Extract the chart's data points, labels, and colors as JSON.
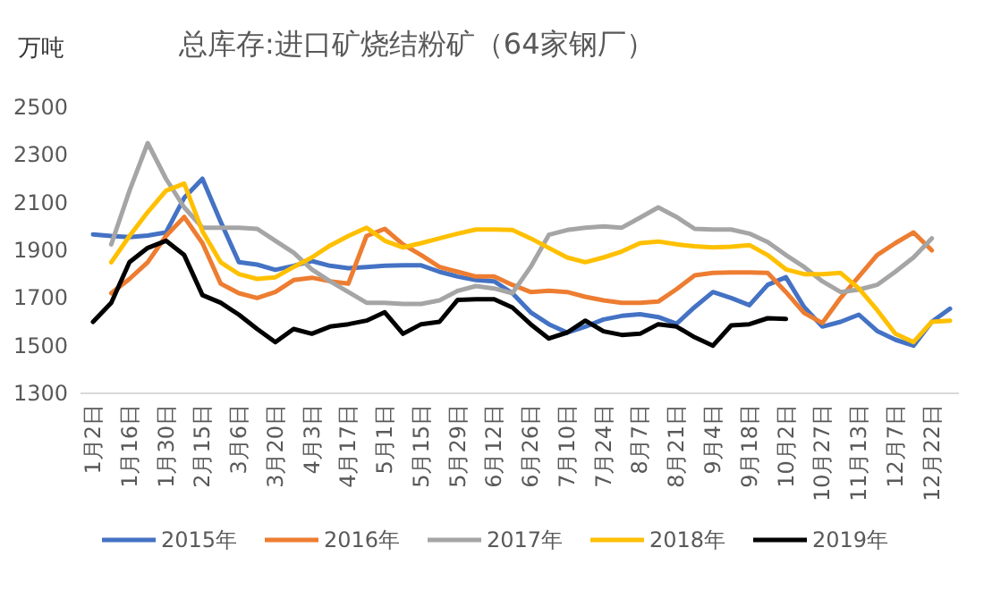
{
  "chart_data": {
    "type": "line",
    "title": "总库存:进口矿烧结粉矿（64家钢厂）",
    "ylabel": "万吨",
    "categories": [
      "1月2日",
      null,
      "1月16日",
      null,
      "1月30日",
      null,
      "2月15日",
      null,
      "3月6日",
      null,
      "3月20日",
      null,
      "4月3日",
      null,
      "4月17日",
      null,
      "5月1日",
      null,
      "5月15日",
      null,
      "5月29日",
      null,
      "6月12日",
      null,
      "6月26日",
      null,
      "7月10日",
      null,
      "7月24日",
      null,
      "8月7日",
      null,
      "8月21日",
      null,
      "9月4日",
      null,
      "9月18日",
      null,
      "10月2日",
      null,
      "10月27日",
      null,
      "11月13日",
      null,
      "12月7日",
      null,
      "12月22日",
      null
    ],
    "ylim": [
      1300,
      2500
    ],
    "yticks": [
      1300,
      1500,
      1700,
      1900,
      2100,
      2300,
      2500
    ],
    "grid": false,
    "legend": "bottom",
    "marker": "none",
    "line_style": "solid",
    "series": [
      {
        "name": "2015年",
        "color": "#4472c4",
        "values": [
          1967,
          1960,
          1955,
          1962,
          1975,
          2120,
          2200,
          2020,
          1850,
          1840,
          1818,
          1835,
          1855,
          1835,
          1825,
          1830,
          1835,
          1837,
          1837,
          1810,
          1790,
          1775,
          1770,
          1720,
          1640,
          1590,
          1555,
          1580,
          1610,
          1625,
          1632,
          1620,
          1592,
          1662,
          1725,
          1700,
          1670,
          1755,
          1787,
          1662,
          1580,
          1600,
          1630,
          1562,
          1525,
          1500,
          1600,
          1655
        ]
      },
      {
        "name": "2016年",
        "color": "#ed7d31",
        "values": [
          null,
          1720,
          1780,
          1850,
          1960,
          2040,
          1930,
          1760,
          1720,
          1700,
          1725,
          1775,
          1785,
          1770,
          1760,
          1960,
          1990,
          1925,
          1880,
          1830,
          1810,
          1790,
          1790,
          1755,
          1725,
          1730,
          1725,
          1705,
          1690,
          1680,
          1680,
          1685,
          1737,
          1795,
          1805,
          1807,
          1807,
          1805,
          1725,
          1637,
          1595,
          1700,
          1790,
          1880,
          1930,
          1975,
          1900,
          null
        ]
      },
      {
        "name": "2017年",
        "color": "#a5a5a5",
        "values": [
          null,
          1925,
          2150,
          2350,
          2200,
          2080,
          1995,
          1995,
          1995,
          1990,
          1940,
          1890,
          1820,
          1770,
          1725,
          1680,
          1680,
          1675,
          1675,
          1690,
          1730,
          1750,
          1740,
          1720,
          1830,
          1965,
          1985,
          1995,
          2000,
          1995,
          2037,
          2080,
          2040,
          1990,
          1987,
          1987,
          1970,
          1935,
          1880,
          1830,
          1770,
          1725,
          1735,
          1755,
          1810,
          1870,
          1950,
          null
        ]
      },
      {
        "name": "2018年",
        "color": "#ffc000",
        "values": [
          null,
          1850,
          1960,
          2060,
          2150,
          2180,
          1980,
          1850,
          1800,
          1780,
          1787,
          1830,
          1870,
          1920,
          1960,
          1995,
          1940,
          1912,
          1930,
          1950,
          1970,
          1987,
          1987,
          1985,
          1950,
          1910,
          1870,
          1850,
          1870,
          1895,
          1930,
          1937,
          1925,
          1917,
          1912,
          1915,
          1922,
          1880,
          1820,
          1800,
          1800,
          1805,
          1740,
          1650,
          1550,
          1515,
          1600,
          1605
        ]
      },
      {
        "name": "2019年",
        "color": "#000000",
        "values": [
          1600,
          1680,
          1850,
          1910,
          1940,
          1880,
          1712,
          1680,
          1630,
          1570,
          1515,
          1570,
          1550,
          1580,
          1590,
          1605,
          1640,
          1550,
          1590,
          1600,
          1692,
          1695,
          1695,
          1660,
          1590,
          1530,
          1555,
          1605,
          1560,
          1545,
          1550,
          1590,
          1580,
          1535,
          1500,
          1585,
          1590,
          1615,
          1612,
          null,
          null,
          null,
          null,
          null,
          null,
          null,
          null,
          null
        ]
      }
    ]
  }
}
